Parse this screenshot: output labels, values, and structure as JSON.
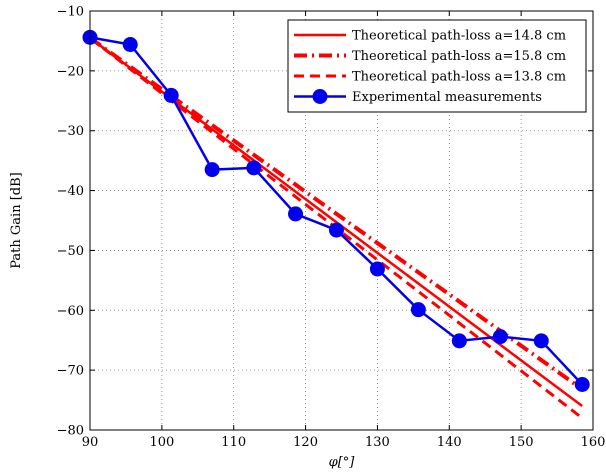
{
  "chart_data": {
    "type": "line",
    "title": "",
    "xlabel": "φ[°]",
    "ylabel": "Path Gain [dB]",
    "xlim": [
      90,
      160
    ],
    "ylim": [
      -80,
      -10
    ],
    "xticks": [
      90,
      100,
      110,
      120,
      130,
      140,
      150,
      160
    ],
    "yticks": [
      -80,
      -70,
      -60,
      -50,
      -40,
      -30,
      -20,
      -10
    ],
    "grid": true,
    "legend_position": "top-right",
    "series": [
      {
        "name": "Theoretical path-loss a=14.8 cm",
        "style": "solid",
        "color": "#ff0000",
        "x": [
          90,
          158.5
        ],
        "y": [
          -14.5,
          -76.0
        ]
      },
      {
        "name": "Theoretical path-loss a=15.8 cm",
        "style": "dashdot",
        "color": "#ff0000",
        "x": [
          90,
          158.5
        ],
        "y": [
          -14.5,
          -73.2
        ]
      },
      {
        "name": "Theoretical path-loss a=13.8 cm",
        "style": "dashed",
        "color": "#ff0000",
        "x": [
          90,
          158.5
        ],
        "y": [
          -14.5,
          -78.0
        ]
      },
      {
        "name": "Experimental measurements",
        "style": "solid-marker",
        "color": "#0000ee",
        "x": [
          90,
          95.6,
          101.3,
          107.0,
          112.8,
          118.6,
          124.3,
          130.0,
          135.7,
          141.4,
          147.1,
          152.8,
          158.5
        ],
        "y": [
          -14.4,
          -15.6,
          -24.1,
          -36.5,
          -36.2,
          -43.9,
          -46.6,
          -53.1,
          -59.9,
          -65.1,
          -64.4,
          -65.1,
          -72.4
        ]
      }
    ]
  }
}
